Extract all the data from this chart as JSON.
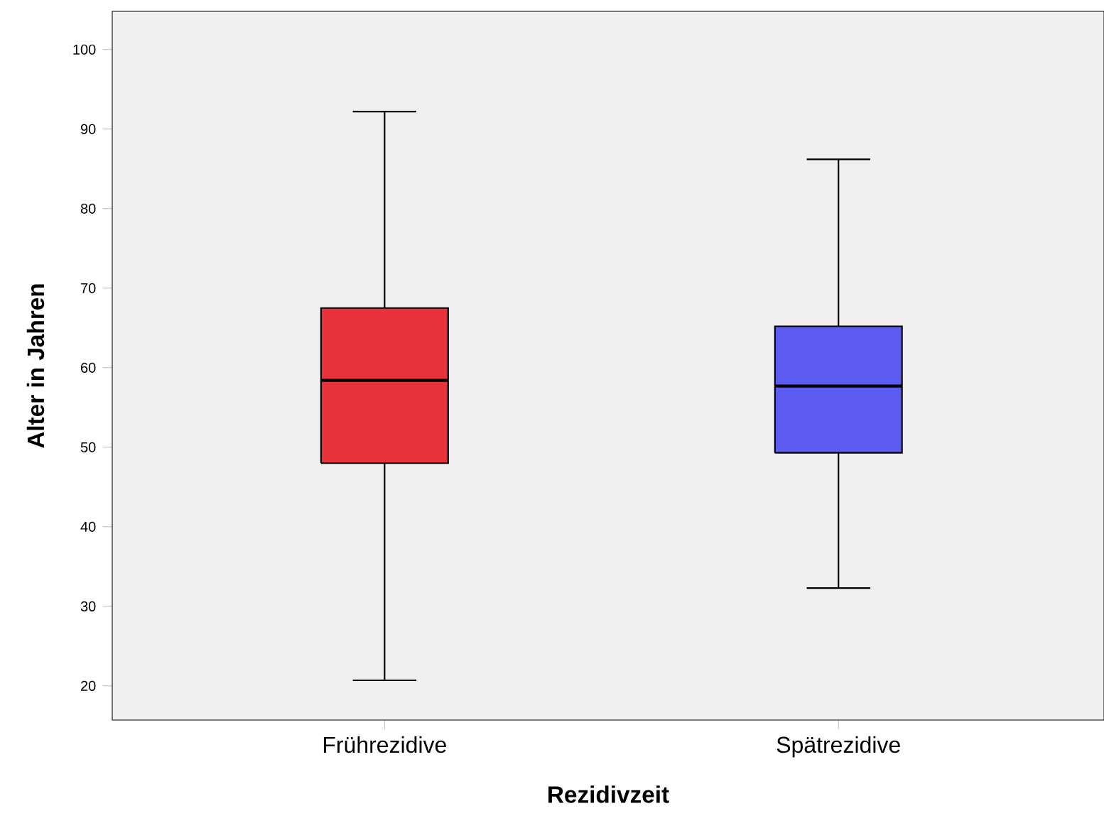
{
  "chart_data": {
    "type": "box",
    "xlabel": "Rezidivzeit",
    "ylabel": "Alter in Jahren",
    "categories": [
      "Frührezidive",
      "Spätrezidive"
    ],
    "colors": [
      "#e8333b",
      "#5c5cf3"
    ],
    "boxes": [
      {
        "low": 20.7,
        "q1": 48,
        "median": 58.4,
        "q3": 67.5,
        "high": 92.2
      },
      {
        "low": 32.3,
        "q1": 49.3,
        "median": 57.7,
        "q3": 65.2,
        "high": 86.2
      }
    ],
    "ylim": [
      15.7,
      104.8
    ],
    "yticks": [
      20,
      30,
      40,
      50,
      60,
      70,
      80,
      90,
      100
    ],
    "grid": false
  }
}
